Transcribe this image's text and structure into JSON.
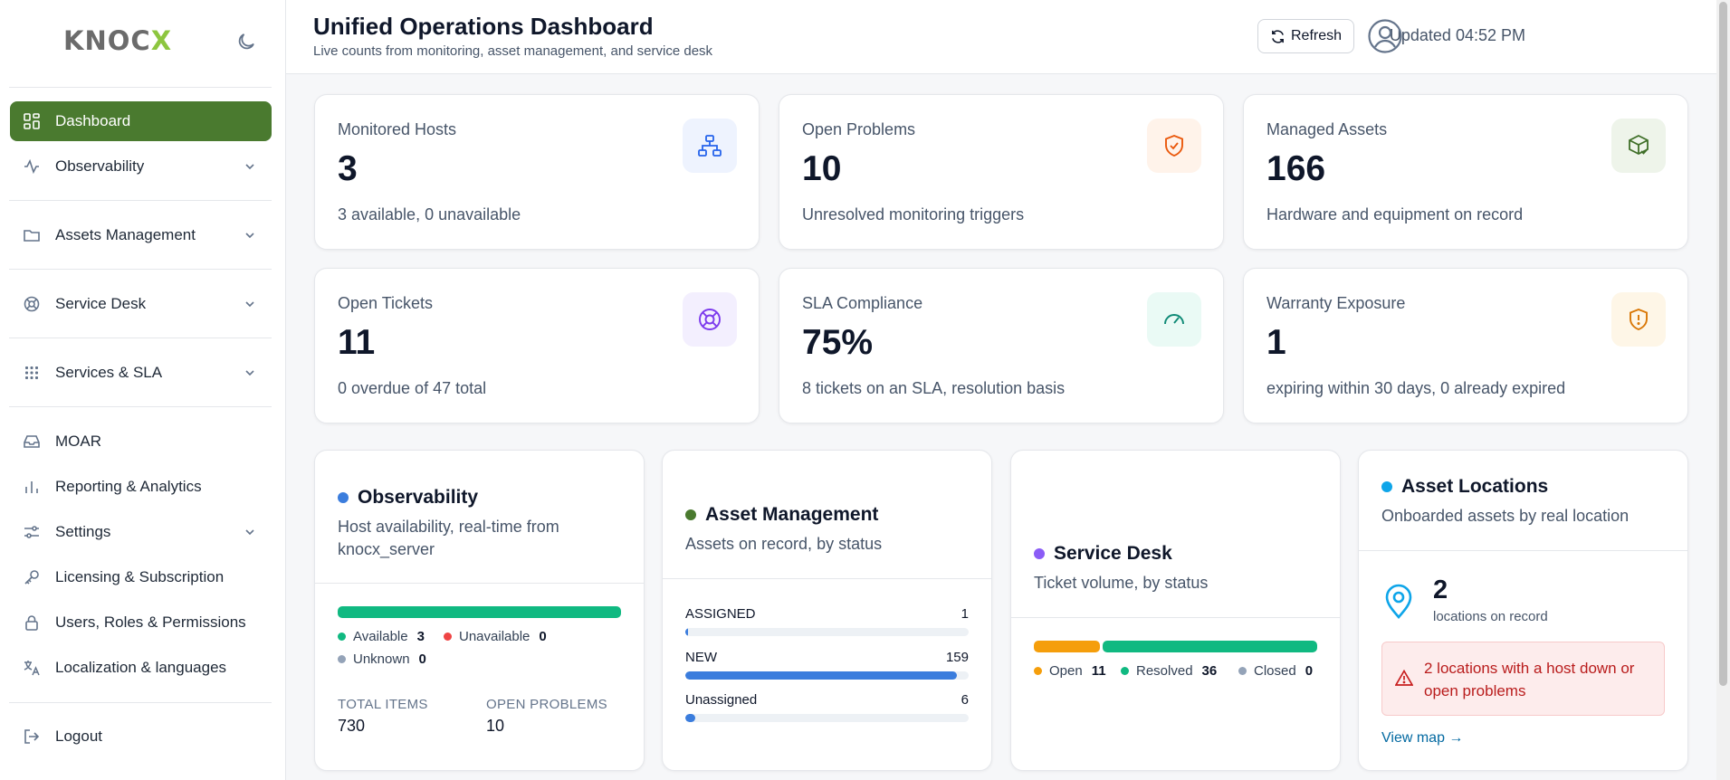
{
  "brand": {
    "logo_main": "KNOC",
    "logo_x": "X"
  },
  "sidebar": {
    "items": [
      {
        "label": "Dashboard"
      },
      {
        "label": "Observability"
      },
      {
        "label": "Assets Management"
      },
      {
        "label": "Service Desk"
      },
      {
        "label": "Services & SLA"
      },
      {
        "label": "MOAR"
      },
      {
        "label": "Reporting & Analytics"
      },
      {
        "label": "Settings"
      },
      {
        "label": "Licensing & Subscription"
      },
      {
        "label": "Users, Roles & Permissions"
      },
      {
        "label": "Localization & languages"
      },
      {
        "label": "Logout"
      }
    ]
  },
  "header": {
    "title": "Unified Operations Dashboard",
    "subtitle": "Live counts from monitoring, asset management, and service desk",
    "updated": "Updated 04:52 PM",
    "refresh_label": "Refresh"
  },
  "stats": [
    {
      "label": "Monitored Hosts",
      "value": "3",
      "desc": "3 available, 0 unavailable"
    },
    {
      "label": "Open Problems",
      "value": "10",
      "desc": "Unresolved monitoring triggers"
    },
    {
      "label": "Managed Assets",
      "value": "166",
      "desc": "Hardware and equipment on record"
    },
    {
      "label": "Open Tickets",
      "value": "11",
      "desc": "0 overdue of 47 total"
    },
    {
      "label": "SLA Compliance",
      "value": "75%",
      "desc": "8 tickets on an SLA, resolution basis"
    },
    {
      "label": "Warranty Exposure",
      "value": "1",
      "desc": "expiring within 30 days, 0 already expired"
    }
  ],
  "observability": {
    "title": "Observability",
    "subtitle": "Host availability, real-time from knocx_server",
    "available_label": "Available",
    "available": "3",
    "unavailable_label": "Unavailable",
    "unavailable": "0",
    "unknown_label": "Unknown",
    "unknown": "0",
    "total_items_label": "TOTAL ITEMS",
    "total_items": "730",
    "open_problems_label": "OPEN PROBLEMS",
    "open_problems": "10"
  },
  "asset_management": {
    "title": "Asset Management",
    "subtitle": "Assets on record, by status",
    "rows": [
      {
        "label": "ASSIGNED",
        "count": "1",
        "fraction": 0.006
      },
      {
        "label": "NEW",
        "count": "159",
        "fraction": 0.958
      },
      {
        "label": "Unassigned",
        "count": "6",
        "fraction": 0.036
      }
    ]
  },
  "service_desk": {
    "title": "Service Desk",
    "subtitle": "Ticket volume, by status",
    "open_label": "Open",
    "open": "11",
    "resolved_label": "Resolved",
    "resolved": "36",
    "closed_label": "Closed",
    "closed": "0"
  },
  "asset_locations": {
    "title": "Asset Locations",
    "subtitle": "Onboarded assets by real location",
    "count": "2",
    "count_label": "locations on record",
    "alert": "2 locations with a host down or open problems",
    "link": "View map →"
  },
  "colors": {
    "primary_green": "#4a7a2f",
    "available": "#10b981",
    "unavailable": "#ef4444",
    "unknown": "#94a3b8",
    "open": "#f59e0b",
    "blue": "#3b7ddd",
    "alert_bg": "#fdecec",
    "alert_text": "#b91c1c"
  }
}
